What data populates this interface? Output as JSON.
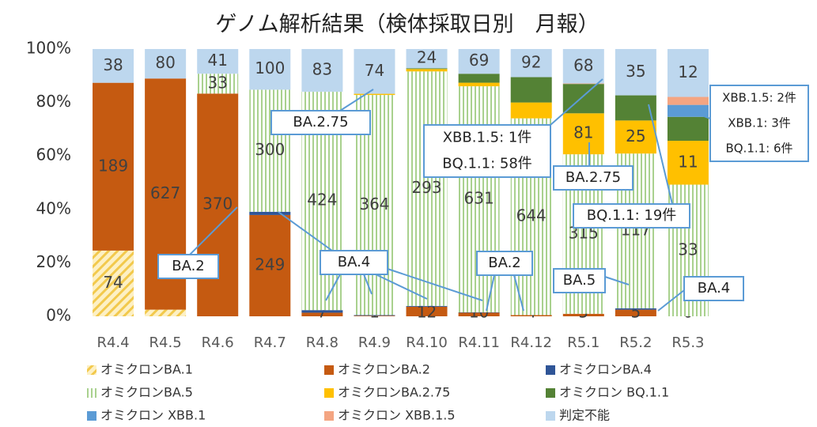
{
  "chart_data": {
    "type": "bar",
    "stacking": "percent",
    "title": "ゲノム解析結果（検体採取日別　月報）",
    "categories": [
      "R4.4",
      "R4.5",
      "R4.6",
      "R4.7",
      "R4.8",
      "R4.9",
      "R4.10",
      "R4.11",
      "R4.12",
      "R5.1",
      "R5.2",
      "R5.3"
    ],
    "series": [
      {
        "name": "オミクロンBA.1",
        "color": "#f2c94c",
        "pattern": "hatch",
        "values": [
          74,
          18,
          0,
          0,
          0,
          0,
          0,
          0,
          0,
          0,
          0,
          0
        ],
        "value_labels": [
          "74",
          "18",
          null,
          null,
          null,
          null,
          null,
          null,
          null,
          null,
          null,
          null
        ]
      },
      {
        "name": "オミクロンBA.2",
        "color": "#c55a11",
        "values": [
          189,
          627,
          370,
          249,
          7,
          1,
          12,
          10,
          4,
          5,
          5,
          0
        ],
        "value_labels": [
          "189",
          "627",
          "370",
          "249",
          "7",
          "1",
          "12",
          "10",
          "4",
          "5",
          "5",
          "0"
        ]
      },
      {
        "name": "オミクロンBA.4",
        "color": "#2f5597",
        "values": [
          0,
          0,
          0,
          8,
          5,
          1,
          1,
          1,
          0,
          0,
          1,
          0
        ],
        "value_labels": [
          null,
          null,
          null,
          "8",
          "5",
          "1",
          "1",
          "1",
          null,
          null,
          "1",
          null
        ]
      },
      {
        "name": "オミクロンBA.5",
        "color": "#a9d18e",
        "pattern": "stripe",
        "values": [
          0,
          0,
          33,
          300,
          424,
          364,
          293,
          631,
          644,
          315,
          117,
          33
        ],
        "value_labels": [
          null,
          null,
          "33",
          "300",
          "424",
          "364",
          "293",
          "631",
          "644",
          "315",
          "117",
          "33"
        ]
      },
      {
        "name": "オミクロンBA.2.75",
        "color": "#ffc000",
        "values": [
          0,
          0,
          0,
          0,
          0,
          2,
          3,
          10,
          52,
          81,
          25,
          11
        ],
        "value_labels": [
          null,
          null,
          null,
          null,
          null,
          null,
          null,
          null,
          null,
          "81",
          "25",
          "11"
        ]
      },
      {
        "name": "オミクロン BQ.1.1",
        "color": "#548235",
        "values": [
          0,
          0,
          0,
          0,
          0,
          0,
          1,
          25,
          83,
          58,
          19,
          6
        ],
        "value_labels": [
          null,
          null,
          null,
          null,
          null,
          null,
          null,
          null,
          null,
          null,
          null,
          null
        ]
      },
      {
        "name": "オミクロン XBB.1",
        "color": "#5b9bd5",
        "values": [
          0,
          0,
          0,
          0,
          0,
          0,
          0,
          0,
          0,
          0,
          0,
          3
        ],
        "value_labels": [
          null,
          null,
          null,
          null,
          null,
          null,
          null,
          null,
          null,
          null,
          null,
          null
        ]
      },
      {
        "name": "オミクロン XBB.1.5",
        "color": "#f4a582",
        "values": [
          0,
          0,
          0,
          0,
          0,
          0,
          0,
          0,
          0,
          1,
          0,
          2
        ],
        "value_labels": [
          null,
          null,
          null,
          null,
          null,
          null,
          null,
          null,
          null,
          null,
          null,
          null
        ]
      },
      {
        "name": "判定不能",
        "color": "#bdd7ee",
        "values": [
          38,
          80,
          41,
          100,
          83,
          74,
          24,
          69,
          92,
          68,
          35,
          12
        ],
        "value_labels": [
          "38",
          "80",
          "41",
          "100",
          "83",
          "74",
          "24",
          "69",
          "92",
          "68",
          "35",
          "12"
        ]
      }
    ],
    "ylim": [
      0,
      100
    ],
    "yticks": [
      {
        "value": 0,
        "label": "0%"
      },
      {
        "value": 20,
        "label": "20%"
      },
      {
        "value": 40,
        "label": "40%"
      },
      {
        "value": 60,
        "label": "60%"
      },
      {
        "value": 80,
        "label": "80%"
      },
      {
        "value": 100,
        "label": "100%"
      }
    ],
    "annotations": [
      {
        "lines": [
          "BA.2"
        ]
      },
      {
        "lines": [
          "BA.2.75"
        ]
      },
      {
        "lines": [
          "BA.4"
        ]
      },
      {
        "lines": [
          "BA.2"
        ]
      },
      {
        "lines": [
          "XBB.1.5: 1件",
          "BQ.1.1: 58件"
        ]
      },
      {
        "lines": [
          "BA.2.75"
        ]
      },
      {
        "lines": [
          "BQ.1.1: 19件"
        ]
      },
      {
        "lines": [
          "BA.5"
        ]
      },
      {
        "lines": [
          "BA.4"
        ]
      },
      {
        "lines": [
          "XBB.1.5: 2件",
          "XBB.1: 3件",
          "BQ.1.1: 6件"
        ]
      }
    ]
  }
}
